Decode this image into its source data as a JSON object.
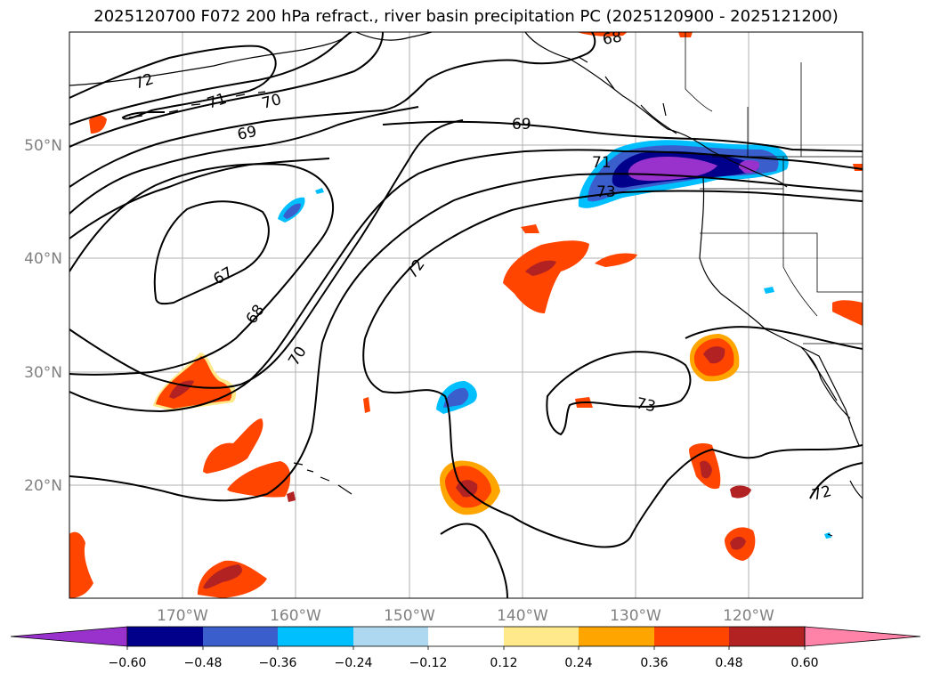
{
  "title": "2025120700 F072 200 hPa refract., river basin precipitation PC (2025120900 - 2025121200)",
  "map": {
    "lat_labels": [
      "50°N",
      "40°N",
      "30°N",
      "20°N"
    ],
    "lon_labels": [
      "170°W",
      "160°W",
      "150°W",
      "140°W",
      "130°W",
      "120°W"
    ],
    "contour_labels": [
      "72",
      "71",
      "70",
      "69",
      "69",
      "68",
      "71",
      "73",
      "67",
      "68",
      "72",
      "70",
      "73",
      "72"
    ],
    "colors": {
      "coast": "#000000",
      "grid": "#b0b0b0",
      "pos_light": "#ffe98a",
      "pos_orange": "#ffa500",
      "pos_redorange": "#ff4500",
      "pos_firebrick": "#b22222",
      "neg_royal": "#3a5fcd",
      "neg_navy": "#00008b",
      "neg_purple": "#9932cc",
      "neg_sky": "#00bfff"
    }
  },
  "colorbar": {
    "ticks": [
      "−0.60",
      "−0.48",
      "−0.36",
      "−0.24",
      "−0.12",
      "0.12",
      "0.24",
      "0.36",
      "0.48",
      "0.60"
    ],
    "colors": [
      "#9932cc",
      "#00008b",
      "#3a5fcd",
      "#00bfff",
      "#add8f0",
      "#ffffff",
      "#ffe98a",
      "#ffa500",
      "#ff4500",
      "#b22222",
      "#ff82a8"
    ]
  }
}
